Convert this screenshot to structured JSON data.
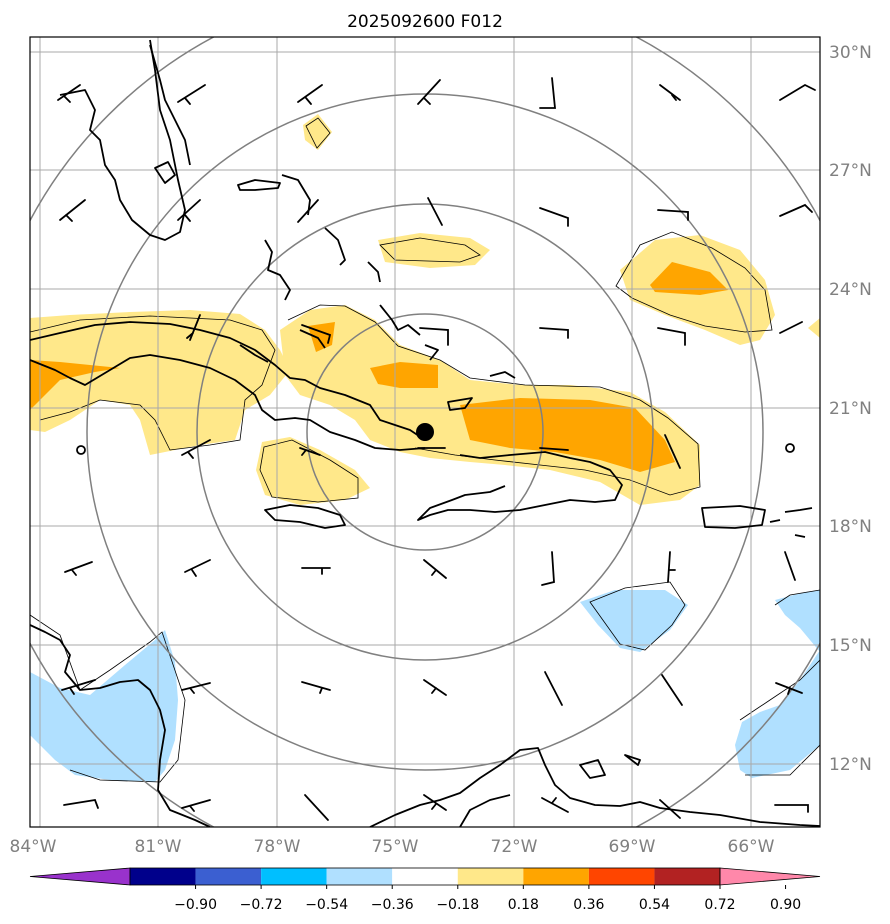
{
  "title": "2025092600 F012",
  "map": {
    "lon_labels": [
      "84°W",
      "81°W",
      "78°W",
      "75°W",
      "72°W",
      "69°W",
      "66°W"
    ],
    "lat_labels": [
      "30°N",
      "27°N",
      "24°N",
      "21°N",
      "18°N",
      "15°N",
      "12°N"
    ],
    "extent": {
      "lon_min": -84,
      "lon_max": -64,
      "lat_min": 10.4,
      "lat_max": 30.4
    },
    "storm_center": {
      "lon": -74.3,
      "lat": 20.4
    },
    "range_rings": "concentric circles centered on storm",
    "barbs": "wind barbs on regular lon/lat grid"
  },
  "colorbar": {
    "labels": [
      "−0.90",
      "−0.72",
      "−0.54",
      "−0.36",
      "−0.18",
      "0.18",
      "0.36",
      "0.54",
      "0.72",
      "0.90"
    ],
    "colors": [
      "#9932CC",
      "#00008B",
      "#3B5FD1",
      "#00BFFF",
      "#B0E0FF",
      "#FFFFFF",
      "#FFE88A",
      "#FFA500",
      "#FF4500",
      "#B22222",
      "#FF88AA"
    ],
    "extend": "both"
  },
  "colors": {
    "positive_1": "#FFE88A",
    "positive_2": "#FFA500",
    "negative_1": "#B0E0FF",
    "grid": "#A9A9A9",
    "rings": "#808080"
  }
}
